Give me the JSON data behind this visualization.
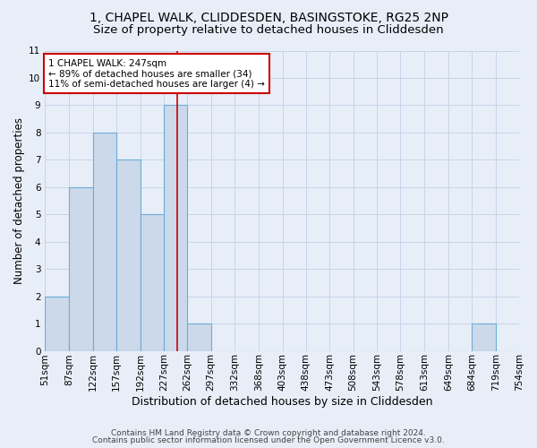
{
  "title_line1": "1, CHAPEL WALK, CLIDDESDEN, BASINGSTOKE, RG25 2NP",
  "title_line2": "Size of property relative to detached houses in Cliddesden",
  "xlabel": "Distribution of detached houses by size in Cliddesden",
  "ylabel": "Number of detached properties",
  "footer_line1": "Contains HM Land Registry data © Crown copyright and database right 2024.",
  "footer_line2": "Contains public sector information licensed under the Open Government Licence v3.0.",
  "bin_edges": [
    51,
    87,
    122,
    157,
    192,
    227,
    262,
    297,
    332,
    368,
    403,
    438,
    473,
    508,
    543,
    578,
    613,
    649,
    684,
    719,
    754
  ],
  "bar_heights": [
    2,
    6,
    8,
    7,
    5,
    9,
    1,
    0,
    0,
    0,
    0,
    0,
    0,
    0,
    0,
    0,
    0,
    0,
    1,
    0
  ],
  "bar_color": "#ccd9ea",
  "bar_edge_color": "#6aaed6",
  "bar_edge_width": 0.8,
  "subject_value": 247,
  "subject_line_color": "#cc0000",
  "annotation_text": "1 CHAPEL WALK: 247sqm\n← 89% of detached houses are smaller (34)\n11% of semi-detached houses are larger (4) →",
  "annotation_box_color": "#ffffff",
  "annotation_box_edge_color": "#cc0000",
  "ylim": [
    0,
    11
  ],
  "yticks": [
    0,
    1,
    2,
    3,
    4,
    5,
    6,
    7,
    8,
    9,
    10,
    11
  ],
  "grid_color": "#c8d4e8",
  "background_color": "#e8eef8",
  "title_fontsize": 10,
  "subtitle_fontsize": 9.5,
  "xlabel_fontsize": 9,
  "ylabel_fontsize": 8.5,
  "tick_fontsize": 7.5,
  "annotation_fontsize": 7.5,
  "footer_fontsize": 6.5
}
